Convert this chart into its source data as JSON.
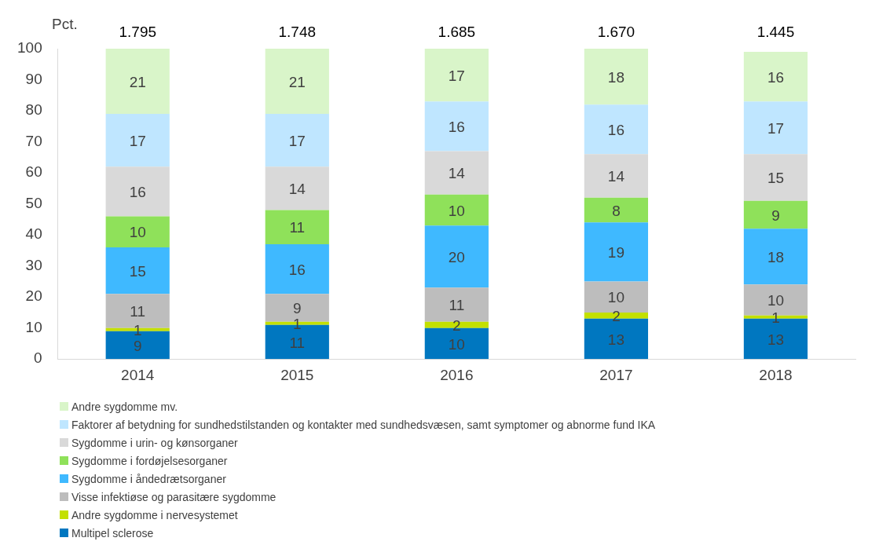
{
  "chart_data": {
    "type": "bar",
    "stacked": true,
    "ylabel": "Pct.",
    "categories": [
      "2014",
      "2015",
      "2016",
      "2017",
      "2018"
    ],
    "series": [
      {
        "name": "Multipel sclerose",
        "color": "#0077c0",
        "values": [
          9,
          11,
          10,
          13,
          13
        ]
      },
      {
        "name": "Andre sygdomme i nervesystemet",
        "color": "#c3e000",
        "values": [
          1,
          1,
          2,
          2,
          1
        ]
      },
      {
        "name": "Visse infektiøse og parasitære sygdomme",
        "color": "#bdbdbd",
        "values": [
          11,
          9,
          11,
          10,
          10
        ]
      },
      {
        "name": "Sygdomme i åndedrætsorganer",
        "color": "#3fb9ff",
        "values": [
          15,
          16,
          20,
          19,
          18
        ]
      },
      {
        "name": "Sygdomme i fordøjelsesorganer",
        "color": "#8fe15a",
        "values": [
          10,
          11,
          10,
          8,
          9
        ]
      },
      {
        "name": "Sygdomme i urin- og kønsorganer",
        "color": "#d9d9d9",
        "values": [
          16,
          14,
          14,
          14,
          15
        ]
      },
      {
        "name": "Faktorer af betydning for sundhedstilstanden og kontakter med sundhedsvæsen, samt symptomer og abnorme fund IKA",
        "color": "#bfe6ff",
        "values": [
          17,
          17,
          16,
          16,
          17
        ]
      },
      {
        "name": "Andre sygdomme mv.",
        "color": "#d9f5c9",
        "values": [
          21,
          21,
          17,
          18,
          16
        ]
      }
    ],
    "annotations": [
      "1.795",
      "1.748",
      "1.685",
      "1.670",
      "1.445"
    ],
    "ylim": [
      0,
      100
    ],
    "yticks": [
      0,
      10,
      20,
      30,
      40,
      50,
      60,
      70,
      80,
      90,
      100
    ],
    "grid": false,
    "legend": "bottom",
    "data_labels": true
  }
}
